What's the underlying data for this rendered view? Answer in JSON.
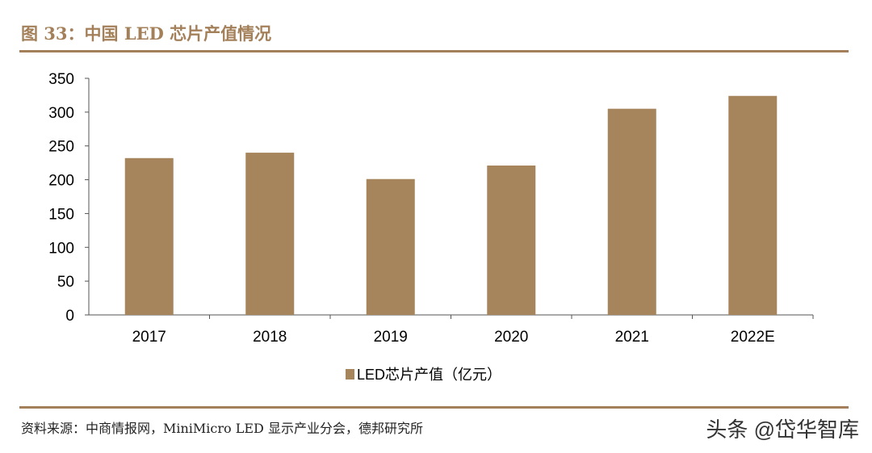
{
  "title": "图 33：中国 LED 芯片产值情况",
  "source": "资料来源：中商情报网，MiniMicro LED 显示产业分会，德邦研究所",
  "watermark": "头条 @岱华智库",
  "colors": {
    "accent": "#a4805a",
    "bar": "#a6855d"
  },
  "chart_data": {
    "type": "bar",
    "categories": [
      "2017",
      "2018",
      "2019",
      "2020",
      "2021",
      "2022E"
    ],
    "series": [
      {
        "name": "LED芯片产值（亿元）",
        "values": [
          232,
          240,
          201,
          221,
          305,
          324
        ]
      }
    ],
    "ylim": [
      0,
      350
    ],
    "yticks": [
      0,
      50,
      100,
      150,
      200,
      250,
      300,
      350
    ],
    "grid": false,
    "legend": "bottom"
  }
}
